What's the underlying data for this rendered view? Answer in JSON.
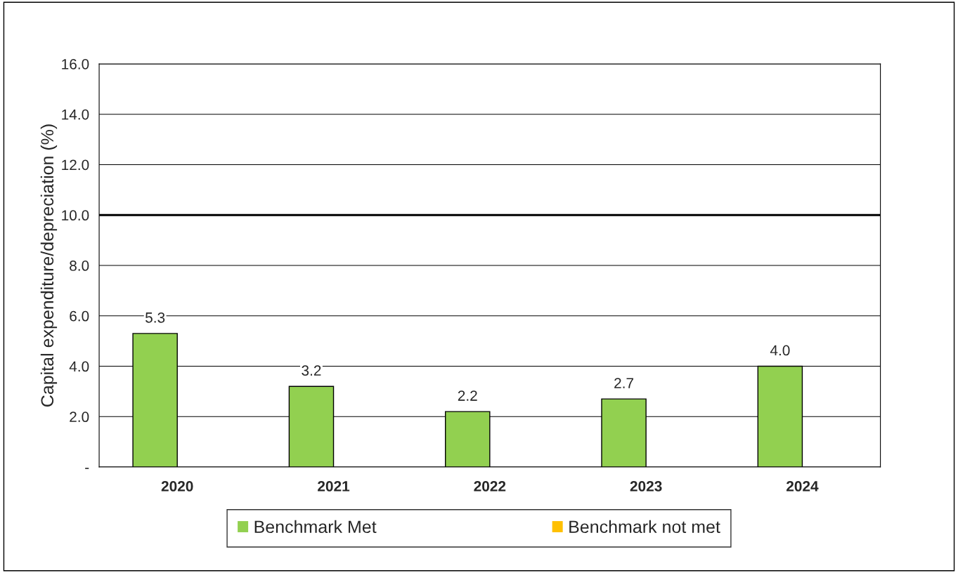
{
  "chart_data": {
    "type": "bar",
    "ylabel": "Capital expenditure/depreciation (%)",
    "categories": [
      "2020",
      "2021",
      "2022",
      "2023",
      "2024"
    ],
    "series": [
      {
        "name": "Benchmark Met",
        "color": "#92d050",
        "values": [
          5.3,
          3.2,
          2.2,
          2.7,
          4.0
        ],
        "value_labels": [
          "5.3",
          "3.2",
          "2.2",
          "2.7",
          "4.0"
        ]
      },
      {
        "name": "Benchmark not met",
        "color": "#ffc000",
        "values": [
          null,
          null,
          null,
          null,
          null
        ]
      }
    ],
    "ylim": [
      0,
      16
    ],
    "yticks": [
      {
        "value": 0,
        "label": "-"
      },
      {
        "value": 2,
        "label": "2.0"
      },
      {
        "value": 4,
        "label": "4.0"
      },
      {
        "value": 6,
        "label": "6.0"
      },
      {
        "value": 8,
        "label": "8.0"
      },
      {
        "value": 10,
        "label": "10.0"
      },
      {
        "value": 12,
        "label": "12.0"
      },
      {
        "value": 14,
        "label": "14.0"
      },
      {
        "value": 16,
        "label": "16.0"
      }
    ],
    "ref_lines": [
      {
        "axis": "y",
        "value": 10,
        "color": "#000000"
      }
    ],
    "grid": "y",
    "legend": "bottom"
  }
}
